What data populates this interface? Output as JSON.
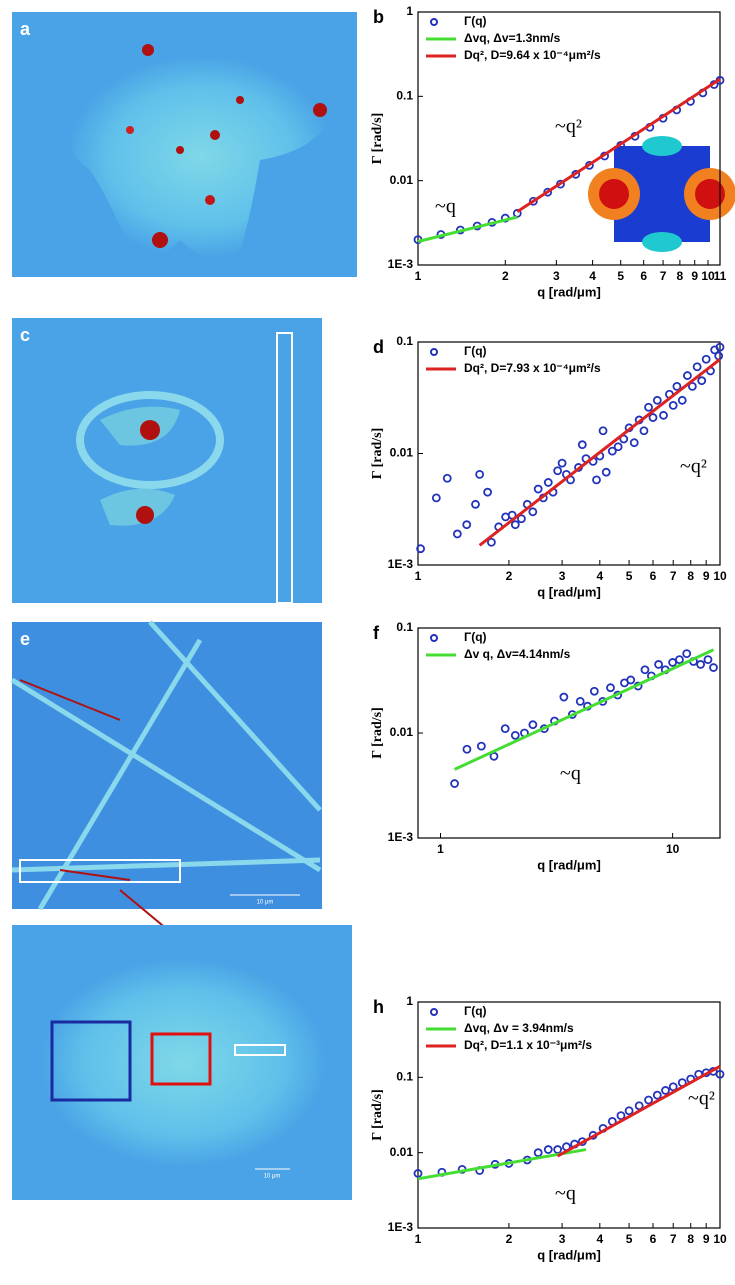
{
  "image_panels": [
    {
      "label": "a"
    },
    {
      "label": "c"
    },
    {
      "label": "e",
      "scale_label": "10 μm"
    },
    {
      "scale_label": "10 μm"
    }
  ],
  "chart_data": [
    {
      "type": "scatter",
      "panel": "b",
      "xlabel": "q [rad/μm]",
      "ylabel": "Γ [rad/s]",
      "xscale": "log",
      "yscale": "log",
      "xlim": [
        1,
        11
      ],
      "ylim": [
        0.001,
        1
      ],
      "xticks": [
        1,
        2,
        3,
        4,
        5,
        6,
        7,
        8,
        9,
        10,
        11
      ],
      "yticks": [
        {
          "value": 0.001,
          "label": "1E-3"
        },
        0.01,
        0.1,
        1
      ],
      "series": [
        {
          "name": "Γ(q)",
          "mode": "markers",
          "color": "#2233bb",
          "x": [
            1.0,
            1.2,
            1.4,
            1.6,
            1.8,
            2.0,
            2.2,
            2.5,
            2.8,
            3.1,
            3.5,
            3.9,
            4.4,
            5.0,
            5.6,
            6.3,
            7.0,
            7.8,
            8.7,
            9.6,
            10.5,
            11
          ],
          "values": [
            0.002,
            0.0023,
            0.0026,
            0.0029,
            0.0032,
            0.0036,
            0.0041,
            0.0057,
            0.0073,
            0.0091,
            0.0119,
            0.0152,
            0.0196,
            0.0262,
            0.0336,
            0.043,
            0.055,
            0.069,
            0.087,
            0.11,
            0.138,
            0.155
          ]
        },
        {
          "name": "Δvq, Δv=1.3nm/s",
          "mode": "line",
          "color": "#44dd33",
          "x": [
            1,
            2.2
          ],
          "values": [
            0.0019,
            0.0037
          ]
        },
        {
          "name": "Dq², D=9.64 x 10⁻⁴μm²/s",
          "mode": "line",
          "color": "#dd2222",
          "x": [
            2.2,
            11
          ],
          "values": [
            0.0043,
            0.16
          ]
        }
      ],
      "annotations": [
        "~q²",
        "~q"
      ]
    },
    {
      "type": "scatter",
      "panel": "d",
      "xlabel": "q [rad/μm]",
      "ylabel": "Γ [rad/s]",
      "xscale": "log",
      "yscale": "log",
      "xlim": [
        1,
        10
      ],
      "ylim": [
        0.001,
        0.1
      ],
      "xticks": [
        1,
        2,
        3,
        4,
        5,
        6,
        7,
        8,
        9,
        10
      ],
      "yticks": [
        {
          "value": 0.001,
          "label": "1E-3"
        },
        0.01,
        0.1
      ],
      "series": [
        {
          "name": "Γ(q)",
          "mode": "markers",
          "color": "#2233bb",
          "x": [
            1.02,
            1.15,
            1.25,
            1.35,
            1.45,
            1.55,
            1.6,
            1.7,
            1.75,
            1.85,
            1.95,
            2.05,
            2.1,
            2.2,
            2.3,
            2.4,
            2.5,
            2.6,
            2.7,
            2.8,
            2.9,
            3.0,
            3.1,
            3.2,
            3.4,
            3.5,
            3.6,
            3.8,
            3.9,
            4.0,
            4.1,
            4.2,
            4.4,
            4.6,
            4.8,
            5.0,
            5.2,
            5.4,
            5.6,
            5.8,
            6.0,
            6.2,
            6.5,
            6.8,
            7.0,
            7.2,
            7.5,
            7.8,
            8.1,
            8.4,
            8.7,
            9.0,
            9.3,
            9.6,
            9.9,
            10
          ],
          "values": [
            0.0014,
            0.004,
            0.006,
            0.0019,
            0.0023,
            0.0035,
            0.0065,
            0.0045,
            0.0016,
            0.0022,
            0.0027,
            0.0028,
            0.0023,
            0.0026,
            0.0035,
            0.003,
            0.0048,
            0.004,
            0.0055,
            0.0045,
            0.007,
            0.0082,
            0.0065,
            0.0058,
            0.0075,
            0.012,
            0.009,
            0.0085,
            0.0058,
            0.0095,
            0.016,
            0.0068,
            0.0105,
            0.0115,
            0.0135,
            0.017,
            0.0125,
            0.02,
            0.016,
            0.026,
            0.021,
            0.03,
            0.022,
            0.034,
            0.027,
            0.04,
            0.03,
            0.05,
            0.04,
            0.06,
            0.045,
            0.07,
            0.055,
            0.085,
            0.075,
            0.09
          ]
        },
        {
          "name": "Dq², D=7.93 x 10⁻⁴μm²/s",
          "mode": "line",
          "color": "#dd2222",
          "x": [
            1.6,
            10
          ],
          "values": [
            0.0015,
            0.07
          ]
        }
      ],
      "annotations": [
        "~q²"
      ]
    },
    {
      "type": "scatter",
      "panel": "f",
      "xlabel": "q [rad/μm]",
      "ylabel": "Γ [rad/s]",
      "xscale": "log",
      "yscale": "log",
      "xlim": [
        0.8,
        16
      ],
      "ylim": [
        0.001,
        0.1
      ],
      "xticks": [
        1,
        10
      ],
      "yticks": [
        {
          "value": 0.001,
          "label": "1E-3"
        },
        0.01,
        0.1
      ],
      "series": [
        {
          "name": "Γ(q)",
          "mode": "markers",
          "color": "#2233bb",
          "x": [
            1.15,
            1.3,
            1.5,
            1.7,
            1.9,
            2.1,
            2.3,
            2.5,
            2.8,
            3.1,
            3.4,
            3.7,
            4.0,
            4.3,
            4.6,
            5.0,
            5.4,
            5.8,
            6.2,
            6.6,
            7.1,
            7.6,
            8.1,
            8.7,
            9.3,
            10,
            10.7,
            11.5,
            12.3,
            13.2,
            14.2,
            15
          ],
          "values": [
            0.0033,
            0.007,
            0.0075,
            0.006,
            0.011,
            0.0095,
            0.01,
            0.012,
            0.011,
            0.013,
            0.022,
            0.015,
            0.02,
            0.018,
            0.025,
            0.02,
            0.027,
            0.023,
            0.03,
            0.032,
            0.028,
            0.04,
            0.035,
            0.045,
            0.04,
            0.047,
            0.05,
            0.057,
            0.048,
            0.045,
            0.05,
            0.042
          ]
        },
        {
          "name": "Δv q, Δv=4.14nm/s",
          "mode": "line",
          "color": "#44dd33",
          "x": [
            1.15,
            15
          ],
          "values": [
            0.0045,
            0.062
          ]
        }
      ],
      "annotations": [
        "~q"
      ]
    },
    {
      "type": "scatter",
      "panel": "h",
      "xlabel": "q [rad/μm]",
      "ylabel": "Γ [rad/s]",
      "xscale": "log",
      "yscale": "log",
      "xlim": [
        1,
        10
      ],
      "ylim": [
        0.001,
        1
      ],
      "xticks": [
        1,
        2,
        3,
        4,
        5,
        6,
        7,
        8,
        9,
        10
      ],
      "yticks": [
        {
          "value": 0.001,
          "label": "1E-3"
        },
        0.01,
        0.1,
        1
      ],
      "series": [
        {
          "name": "Γ(q)",
          "mode": "markers",
          "color": "#2233bb",
          "x": [
            1,
            1.2,
            1.4,
            1.6,
            1.8,
            2.0,
            2.3,
            2.5,
            2.7,
            2.9,
            3.1,
            3.3,
            3.5,
            3.8,
            4.1,
            4.4,
            4.7,
            5.0,
            5.4,
            5.8,
            6.2,
            6.6,
            7.0,
            7.5,
            8.0,
            8.5,
            9.0,
            9.5,
            10
          ],
          "values": [
            0.0053,
            0.0055,
            0.006,
            0.0058,
            0.007,
            0.0072,
            0.008,
            0.01,
            0.011,
            0.011,
            0.012,
            0.013,
            0.014,
            0.017,
            0.021,
            0.026,
            0.031,
            0.036,
            0.042,
            0.05,
            0.058,
            0.067,
            0.075,
            0.085,
            0.095,
            0.11,
            0.115,
            0.12,
            0.11
          ]
        },
        {
          "name": "Δvq, Δv = 3.94nm/s",
          "mode": "line",
          "color": "#44dd33",
          "x": [
            1,
            3.6
          ],
          "values": [
            0.0045,
            0.011
          ]
        },
        {
          "name": "Dq², D=1.1 x 10⁻³μm²/s",
          "mode": "line",
          "color": "#dd2222",
          "x": [
            2.9,
            10
          ],
          "values": [
            0.009,
            0.14
          ]
        }
      ],
      "annotations": [
        "~q²",
        "~q"
      ]
    }
  ]
}
